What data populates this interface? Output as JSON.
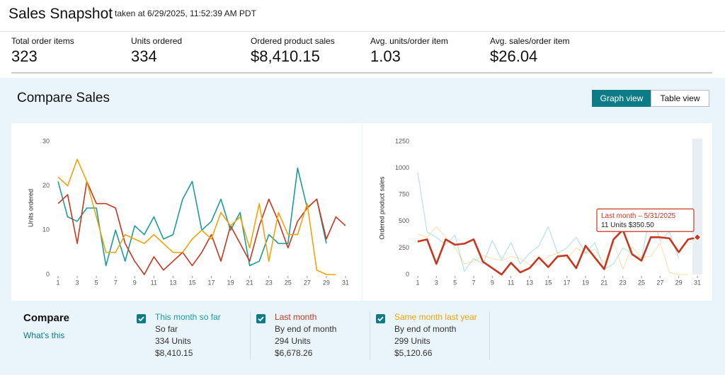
{
  "header": {
    "title": "Sales Snapshot",
    "subtitle": "taken at 6/29/2025, 11:52:39 AM PDT"
  },
  "metrics": [
    {
      "label": "Total order items",
      "value": "323"
    },
    {
      "label": "Units ordered",
      "value": "334"
    },
    {
      "label": "Ordered product sales",
      "value": "$8,410.15"
    },
    {
      "label": "Avg. units/order item",
      "value": "1.03"
    },
    {
      "label": "Avg. sales/order item",
      "value": "$26.04"
    }
  ],
  "compare_panel": {
    "title": "Compare Sales",
    "views": [
      "Graph view",
      "Table view"
    ],
    "active_view": 0
  },
  "chart_data": [
    {
      "type": "line",
      "y_label": "Units ordered",
      "x": [
        1,
        2,
        3,
        4,
        5,
        6,
        7,
        8,
        9,
        10,
        11,
        12,
        13,
        14,
        15,
        16,
        17,
        18,
        19,
        20,
        21,
        22,
        23,
        24,
        25,
        26,
        27,
        28,
        29,
        30,
        31
      ],
      "xlim": [
        1,
        31
      ],
      "xticks": [
        1,
        3,
        5,
        7,
        9,
        11,
        13,
        15,
        17,
        19,
        21,
        23,
        25,
        27,
        29,
        31
      ],
      "ylim": [
        0,
        30
      ],
      "yticks": [
        0,
        10,
        20,
        30
      ],
      "grid": false,
      "series": [
        {
          "name": "This month so far",
          "color": "#1a9c9c",
          "values": [
            21,
            13,
            12,
            15,
            15,
            2,
            10,
            3,
            11,
            9,
            13,
            8,
            9,
            17,
            21,
            10,
            12,
            17,
            10,
            14,
            2,
            3,
            9,
            7,
            7,
            24,
            15,
            17,
            7,
            null,
            null
          ]
        },
        {
          "name": "Last month",
          "color": "#c7361f",
          "values": [
            16,
            18,
            7,
            21,
            16,
            16,
            15,
            7,
            3,
            0,
            4,
            1,
            3,
            5,
            2,
            5,
            9,
            3,
            11,
            7,
            3,
            11,
            17,
            12,
            6,
            12,
            15,
            17,
            8,
            13,
            11
          ]
        },
        {
          "name": "Same month last year",
          "color": "#f0a30a",
          "values": [
            22,
            20,
            26,
            21,
            13,
            5,
            5,
            9,
            8,
            7,
            9,
            7,
            5,
            5,
            8,
            10,
            8,
            14,
            11,
            13,
            6,
            16,
            3,
            14,
            9,
            9,
            16,
            1,
            0,
            0,
            null
          ]
        }
      ]
    },
    {
      "type": "line",
      "y_label": "Ordered product sales",
      "x": [
        1,
        2,
        3,
        4,
        5,
        6,
        7,
        8,
        9,
        10,
        11,
        12,
        13,
        14,
        15,
        16,
        17,
        18,
        19,
        20,
        21,
        22,
        23,
        24,
        25,
        26,
        27,
        28,
        29,
        30,
        31
      ],
      "xlim": [
        1,
        31
      ],
      "xticks": [
        1,
        3,
        5,
        7,
        9,
        11,
        13,
        15,
        17,
        19,
        21,
        23,
        25,
        27,
        29,
        31
      ],
      "ylim": [
        0,
        1250
      ],
      "yticks": [
        0,
        250,
        500,
        750,
        1000,
        1250
      ],
      "grid": false,
      "highlight_series": 1,
      "series": [
        {
          "name": "This month so far",
          "color": "#1a9c9c",
          "values": [
            960,
            400,
            350,
            280,
            370,
            30,
            150,
            100,
            320,
            140,
            300,
            100,
            200,
            270,
            450,
            200,
            250,
            350,
            200,
            300,
            50,
            100,
            250,
            200,
            150,
            600,
            320,
            400,
            150,
            null,
            null
          ]
        },
        {
          "name": "Last month",
          "color": "#c7361f",
          "values": [
            310,
            330,
            100,
            330,
            280,
            290,
            330,
            120,
            60,
            0,
            110,
            20,
            60,
            160,
            70,
            170,
            180,
            60,
            270,
            160,
            50,
            330,
            420,
            190,
            130,
            350,
            350,
            340,
            210,
            330,
            350.5
          ]
        },
        {
          "name": "Same month last year",
          "color": "#f0a30a",
          "values": [
            380,
            350,
            450,
            350,
            250,
            100,
            120,
            180,
            150,
            130,
            170,
            150,
            90,
            100,
            170,
            200,
            150,
            250,
            200,
            240,
            110,
            300,
            50,
            260,
            160,
            170,
            300,
            20,
            0,
            0,
            null
          ]
        }
      ],
      "tooltip": {
        "series": 1,
        "point": 30,
        "title": "Last month – 5/31/2025",
        "text": "11 Units $350.50"
      }
    }
  ],
  "compare": {
    "title": "Compare",
    "link": "What's this",
    "items": [
      {
        "subtitle": "So far",
        "units": "334 Units",
        "sales": "$8,410.15"
      },
      {
        "subtitle": "By end of month",
        "units": "294 Units",
        "sales": "$6,678.26"
      },
      {
        "subtitle": "By end of month",
        "units": "299 Units",
        "sales": "$5,120.66"
      }
    ]
  }
}
